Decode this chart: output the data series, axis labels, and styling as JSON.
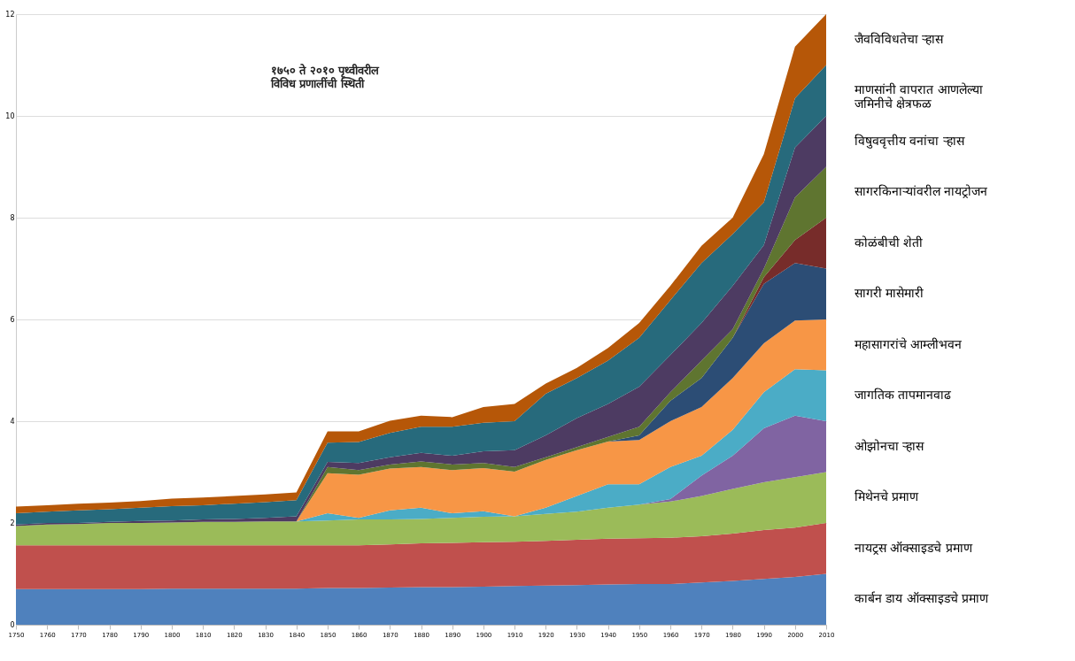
{
  "chart_data": {
    "type": "area",
    "stacked": true,
    "title": "१७५० ते २०१० पृथ्वीवरील विविध प्रणालींची स्थिती",
    "x": [
      1750,
      1760,
      1770,
      1780,
      1790,
      1800,
      1810,
      1820,
      1830,
      1840,
      1850,
      1860,
      1870,
      1880,
      1890,
      1900,
      1910,
      1920,
      1930,
      1940,
      1950,
      1960,
      1970,
      1980,
      1990,
      2000,
      2010
    ],
    "xlim": [
      1750,
      2010
    ],
    "xticks": [
      1750,
      1760,
      1770,
      1780,
      1790,
      1800,
      1810,
      1820,
      1830,
      1840,
      1850,
      1860,
      1870,
      1880,
      1890,
      1900,
      1910,
      1920,
      1930,
      1940,
      1950,
      1960,
      1970,
      1980,
      1990,
      2000,
      2010
    ],
    "ylim": [
      0,
      12
    ],
    "yticks": [
      0,
      2,
      4,
      6,
      8,
      10,
      12
    ],
    "grid": "y",
    "series": [
      {
        "name": "कार्बन डाय ऑक्साइडचे प्रमाण",
        "color": "#4f81bd",
        "values": [
          0.7,
          0.7,
          0.7,
          0.7,
          0.7,
          0.71,
          0.71,
          0.71,
          0.71,
          0.71,
          0.72,
          0.72,
          0.73,
          0.74,
          0.74,
          0.75,
          0.76,
          0.77,
          0.78,
          0.79,
          0.8,
          0.8,
          0.83,
          0.86,
          0.9,
          0.94,
          1.0
        ]
      },
      {
        "name": "नायट्रस ऑक्साइडचे प्रमाण",
        "color": "#c0504d",
        "values": [
          0.86,
          0.86,
          0.86,
          0.86,
          0.86,
          0.85,
          0.85,
          0.85,
          0.85,
          0.85,
          0.84,
          0.84,
          0.85,
          0.86,
          0.87,
          0.87,
          0.87,
          0.88,
          0.89,
          0.9,
          0.9,
          0.91,
          0.91,
          0.93,
          0.96,
          0.97,
          1.0
        ]
      },
      {
        "name": "मिथेनचे प्रमाण",
        "color": "#9bbb59",
        "values": [
          0.38,
          0.41,
          0.42,
          0.44,
          0.44,
          0.45,
          0.46,
          0.46,
          0.47,
          0.47,
          0.49,
          0.51,
          0.49,
          0.48,
          0.49,
          0.5,
          0.5,
          0.53,
          0.55,
          0.61,
          0.66,
          0.71,
          0.79,
          0.88,
          0.94,
          0.99,
          1.0
        ]
      },
      {
        "name": "ओझोनचा ऱ्हास",
        "color": "#8064a2",
        "values": [
          0,
          0,
          0,
          0,
          0,
          0,
          0,
          0,
          0,
          0,
          0,
          0,
          0,
          0,
          0,
          0,
          0,
          0,
          0,
          0,
          0,
          0.05,
          0.4,
          0.65,
          1.06,
          1.21,
          1.0
        ]
      },
      {
        "name": "जागतिक तापमानवाढ",
        "color": "#4bacc6",
        "values": [
          0,
          0,
          0,
          0,
          0,
          0,
          0,
          0,
          0,
          0,
          0.14,
          0.03,
          0.18,
          0.22,
          0.09,
          0.11,
          0,
          0.12,
          0.31,
          0.46,
          0.4,
          0.63,
          0.39,
          0.51,
          0.71,
          0.91,
          1.0
        ]
      },
      {
        "name": "महासागरांचे आम्लीभवन",
        "color": "#f79646",
        "values": [
          0,
          0,
          0,
          0,
          0,
          0,
          0,
          0,
          0,
          0,
          0.79,
          0.85,
          0.82,
          0.8,
          0.85,
          0.85,
          0.88,
          0.94,
          0.9,
          0.84,
          0.87,
          0.9,
          0.96,
          1.02,
          0.96,
          0.96,
          1.0
        ]
      },
      {
        "name": "सागरी मासेमारी",
        "color": "#2c4d75",
        "values": [
          0,
          0,
          0,
          0,
          0,
          0,
          0,
          0,
          0,
          0,
          0,
          0,
          0,
          0,
          0,
          0,
          0,
          0,
          0,
          0,
          0.09,
          0.4,
          0.57,
          0.79,
          1.17,
          1.13,
          1.0
        ]
      },
      {
        "name": "कोळंबीची शेती",
        "color": "#772c2a",
        "values": [
          0,
          0,
          0,
          0,
          0,
          0,
          0,
          0,
          0,
          0,
          0,
          0,
          0,
          0,
          0,
          0,
          0,
          0,
          0,
          0,
          0,
          0,
          0,
          0,
          0.13,
          0.45,
          1.0
        ]
      },
      {
        "name": "सागरकिनाऱ्यांवरील नायट्रोजन",
        "color": "#5f7530",
        "values": [
          0,
          0,
          0,
          0,
          0,
          0,
          0,
          0,
          0,
          0,
          0.12,
          0.09,
          0.08,
          0.11,
          0.11,
          0.1,
          0.09,
          0.05,
          0.06,
          0.09,
          0.17,
          0.17,
          0.34,
          0.17,
          0.17,
          0.84,
          1.0
        ]
      },
      {
        "name": "विषुववृत्तीय वनांचा ऱ्हास",
        "color": "#4d3b62",
        "values": [
          0.03,
          0.03,
          0.02,
          0.02,
          0.04,
          0.04,
          0.05,
          0.06,
          0.07,
          0.1,
          0.1,
          0.14,
          0.14,
          0.17,
          0.17,
          0.23,
          0.33,
          0.43,
          0.57,
          0.65,
          0.79,
          0.73,
          0.74,
          0.85,
          0.46,
          0.98,
          1.0
        ]
      },
      {
        "name": "माणसांनी वापरात आणलेल्या जमिनीचे क्षेत्रफळ",
        "color": "#276a7c",
        "values": [
          0.22,
          0.22,
          0.25,
          0.25,
          0.26,
          0.28,
          0.28,
          0.3,
          0.31,
          0.32,
          0.38,
          0.41,
          0.48,
          0.51,
          0.57,
          0.56,
          0.57,
          0.82,
          0.79,
          0.85,
          0.96,
          1.08,
          1.18,
          1.02,
          0.84,
          0.97,
          1.0
        ]
      },
      {
        "name": "जैवविविधतेचा ऱ्हास",
        "color": "#b65708",
        "values": [
          0.13,
          0.13,
          0.13,
          0.13,
          0.13,
          0.15,
          0.15,
          0.15,
          0.15,
          0.15,
          0.22,
          0.21,
          0.24,
          0.22,
          0.19,
          0.31,
          0.34,
          0.2,
          0.2,
          0.25,
          0.29,
          0.28,
          0.34,
          0.32,
          0.95,
          1.01,
          1.0
        ]
      }
    ]
  }
}
